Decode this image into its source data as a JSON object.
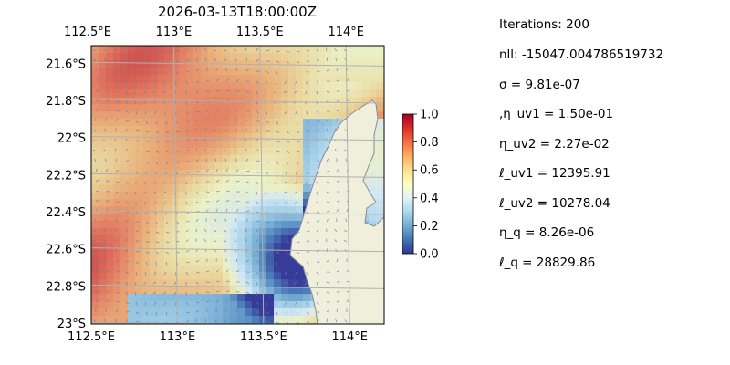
{
  "title": "2026-03-13T18:00:00Z",
  "map": {
    "lon_range": [
      112.5,
      114.2
    ],
    "lat_range": [
      -23.0,
      -21.5
    ],
    "lon_ticks": [
      "112.5°E",
      "113°E",
      "113.5°E",
      "114°E"
    ],
    "lon_tick_values": [
      112.5,
      113.0,
      113.5,
      114.0
    ],
    "lat_ticks": [
      "21.6°S",
      "21.8°S",
      "22°S",
      "22.2°S",
      "22.4°S",
      "22.6°S",
      "22.8°S",
      "23°S"
    ],
    "lat_tick_values": [
      -21.6,
      -21.8,
      -22.0,
      -22.2,
      -22.4,
      -22.6,
      -22.8,
      -23.0
    ],
    "colors": {
      "ocean": "#97b6e2",
      "land": "#efefdb",
      "coast": "#8a8a9a",
      "grid": "#b0b0b0"
    }
  },
  "colorbar": {
    "ticks": [
      "0.0",
      "0.2",
      "0.4",
      "0.6",
      "0.8",
      "1.0"
    ],
    "tick_values": [
      0.0,
      0.2,
      0.4,
      0.6,
      0.8,
      1.0
    ],
    "colormap": "RdYlBu_r"
  },
  "params": {
    "iterations": "Iterations: 200",
    "nll": "nll: -15047.004786519732",
    "sigma": "σ = 9.81e-07",
    "eta_uv1": ",η_uv1 = 1.50e-01",
    "eta_uv2": "η_uv2 = 2.27e-02",
    "ell_uv1": "ℓ_uv1 = 12395.91",
    "ell_uv2": "ℓ_uv2 = 10278.04",
    "eta_q": "η_q = 8.26e-06",
    "ell_q": "ℓ_q = 28829.86"
  }
}
